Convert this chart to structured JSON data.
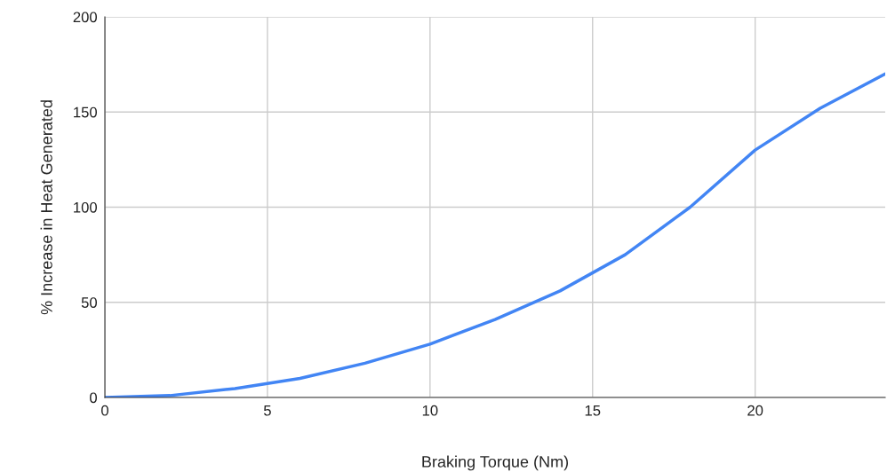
{
  "chart_data": {
    "type": "line",
    "xlabel": "Braking Torque (Nm)",
    "ylabel": "% Increase in Heat Generated",
    "x": [
      0,
      2,
      4,
      6,
      8,
      10,
      12,
      14,
      16,
      18,
      20,
      22,
      24
    ],
    "series": [
      {
        "color": "#4285f4",
        "values": [
          0,
          1,
          4.7,
          10,
          18,
          28,
          41,
          56,
          75,
          100,
          130,
          152,
          170
        ]
      }
    ],
    "xlim": [
      0,
      24
    ],
    "xticks": [
      0,
      5,
      10,
      15,
      20
    ],
    "ylim": [
      0,
      200
    ],
    "yticks": [
      0,
      50,
      100,
      150,
      200
    ],
    "grid": true,
    "legend": false,
    "marker": "none",
    "line_style": "solid"
  }
}
